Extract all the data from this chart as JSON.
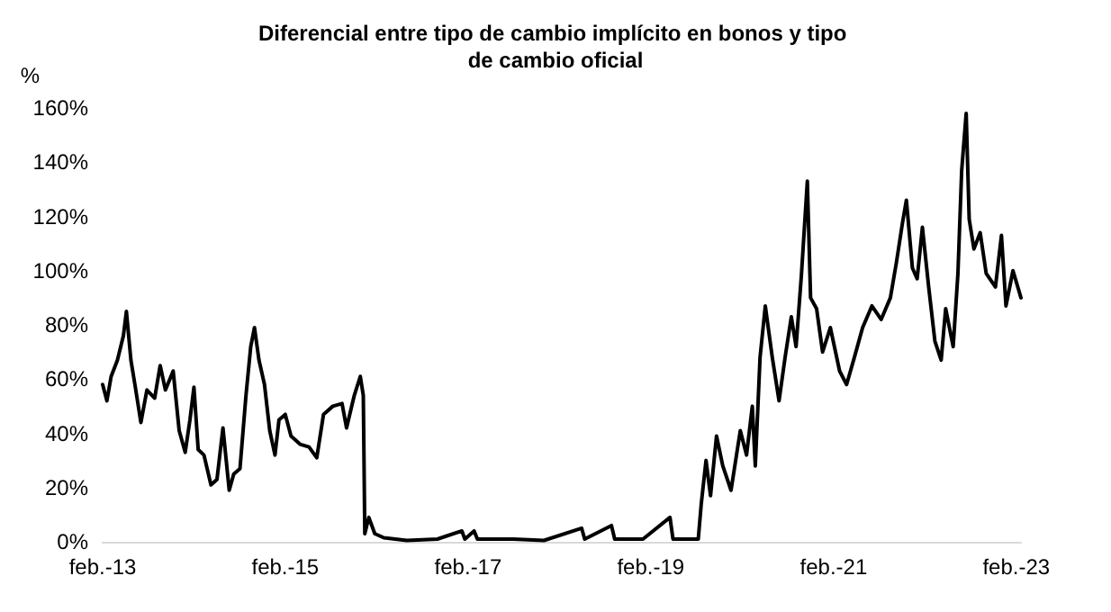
{
  "chart_data": {
    "type": "line",
    "title": "Diferencial entre tipo de cambio implícito en bonos y tipo de cambio oficial",
    "ylabel": "%",
    "x": [
      "2013-02-01",
      "2013-02-18",
      "2013-03-07",
      "2013-04-01",
      "2013-04-25",
      "2013-05-07",
      "2013-05-25",
      "2013-06-10",
      "2013-07-04",
      "2013-07-28",
      "2013-08-28",
      "2013-09-19",
      "2013-10-10",
      "2013-11-10",
      "2013-12-04",
      "2013-12-28",
      "2014-01-16",
      "2014-02-01",
      "2014-02-18",
      "2014-03-13",
      "2014-04-10",
      "2014-05-04",
      "2014-05-28",
      "2014-06-22",
      "2014-07-10",
      "2014-08-04",
      "2014-08-28",
      "2014-09-16",
      "2014-10-01",
      "2014-10-19",
      "2014-11-10",
      "2014-12-01",
      "2014-12-22",
      "2015-01-07",
      "2015-02-01",
      "2015-02-24",
      "2015-04-01",
      "2015-05-07",
      "2015-06-07",
      "2015-07-04",
      "2015-08-10",
      "2015-09-16",
      "2015-10-04",
      "2015-11-04",
      "2015-11-28",
      "2015-12-10",
      "2015-12-16",
      "2016-01-01",
      "2016-01-25",
      "2016-03-01",
      "2016-06-01",
      "2016-10-01",
      "2017-01-07",
      "2017-01-19",
      "2017-02-25",
      "2017-03-10",
      "2017-08-01",
      "2017-12-01",
      "2018-05-01",
      "2018-05-13",
      "2018-08-28",
      "2018-09-10",
      "2019-01-01",
      "2019-04-19",
      "2019-05-01",
      "2019-08-10",
      "2019-08-22",
      "2019-09-10",
      "2019-09-28",
      "2019-10-22",
      "2019-11-16",
      "2019-12-19",
      "2020-01-25",
      "2020-02-19",
      "2020-03-13",
      "2020-03-25",
      "2020-04-13",
      "2020-05-04",
      "2020-06-01",
      "2020-06-28",
      "2020-07-22",
      "2020-08-16",
      "2020-09-04",
      "2020-09-25",
      "2020-10-19",
      "2020-11-01",
      "2020-11-25",
      "2020-12-19",
      "2021-01-19",
      "2021-02-25",
      "2021-03-25",
      "2021-04-25",
      "2021-05-28",
      "2021-07-04",
      "2021-08-10",
      "2021-09-16",
      "2021-10-10",
      "2021-11-04",
      "2021-11-19",
      "2021-12-13",
      "2022-01-01",
      "2022-01-22",
      "2022-02-16",
      "2022-03-13",
      "2022-04-07",
      "2022-04-25",
      "2022-05-25",
      "2022-06-13",
      "2022-06-28",
      "2022-07-16",
      "2022-07-28",
      "2022-08-16",
      "2022-09-10",
      "2022-10-04",
      "2022-11-10",
      "2022-12-04",
      "2022-12-22",
      "2023-01-19",
      "2023-02-20"
    ],
    "series": [
      {
        "color": "#000000",
        "values": [
          58,
          52,
          61,
          67,
          76,
          85,
          67,
          58,
          44,
          56,
          53,
          65,
          56,
          63,
          41,
          33,
          45,
          57,
          34,
          32,
          21,
          23,
          42,
          19,
          25,
          27,
          54,
          72,
          79,
          67,
          58,
          41,
          32,
          45,
          47,
          39,
          36,
          35,
          31,
          47,
          50,
          51,
          42,
          54,
          61,
          54,
          3,
          9,
          3,
          1.5,
          0.5,
          1,
          4,
          1,
          4,
          1,
          1,
          0.5,
          5,
          1,
          6,
          1,
          1,
          9,
          1,
          1,
          14,
          30,
          17,
          39,
          28,
          19,
          41,
          32,
          50,
          28,
          68,
          87,
          68,
          52,
          68,
          83,
          72,
          98,
          133,
          90,
          86,
          70,
          79,
          63,
          58,
          68,
          79,
          87,
          82,
          90,
          103,
          118,
          126,
          101,
          97,
          116,
          94,
          74,
          67,
          86,
          72,
          99,
          137,
          158,
          119,
          108,
          114,
          99,
          94,
          113,
          87,
          100,
          90
        ]
      }
    ],
    "xlim": [
      "2013-02-01",
      "2023-02-20"
    ],
    "xticks": [
      {
        "value": "2013-02-01",
        "label": "feb.-13"
      },
      {
        "value": "2015-02-01",
        "label": "feb.-15"
      },
      {
        "value": "2017-02-01",
        "label": "feb.-17"
      },
      {
        "value": "2019-02-01",
        "label": "feb.-19"
      },
      {
        "value": "2021-02-01",
        "label": "feb.-21"
      },
      {
        "value": "2023-02-01",
        "label": "feb.-23"
      }
    ],
    "ylim": [
      0,
      160
    ],
    "yticks": [
      {
        "value": 0,
        "label": "0%"
      },
      {
        "value": 20,
        "label": "20%"
      },
      {
        "value": 40,
        "label": "40%"
      },
      {
        "value": 60,
        "label": "60%"
      },
      {
        "value": 80,
        "label": "80%"
      },
      {
        "value": 100,
        "label": "100%"
      },
      {
        "value": 120,
        "label": "120%"
      },
      {
        "value": 140,
        "label": "140%"
      },
      {
        "value": 160,
        "label": "160%"
      }
    ],
    "grid": false,
    "marker": "none",
    "line_style": "solid"
  }
}
